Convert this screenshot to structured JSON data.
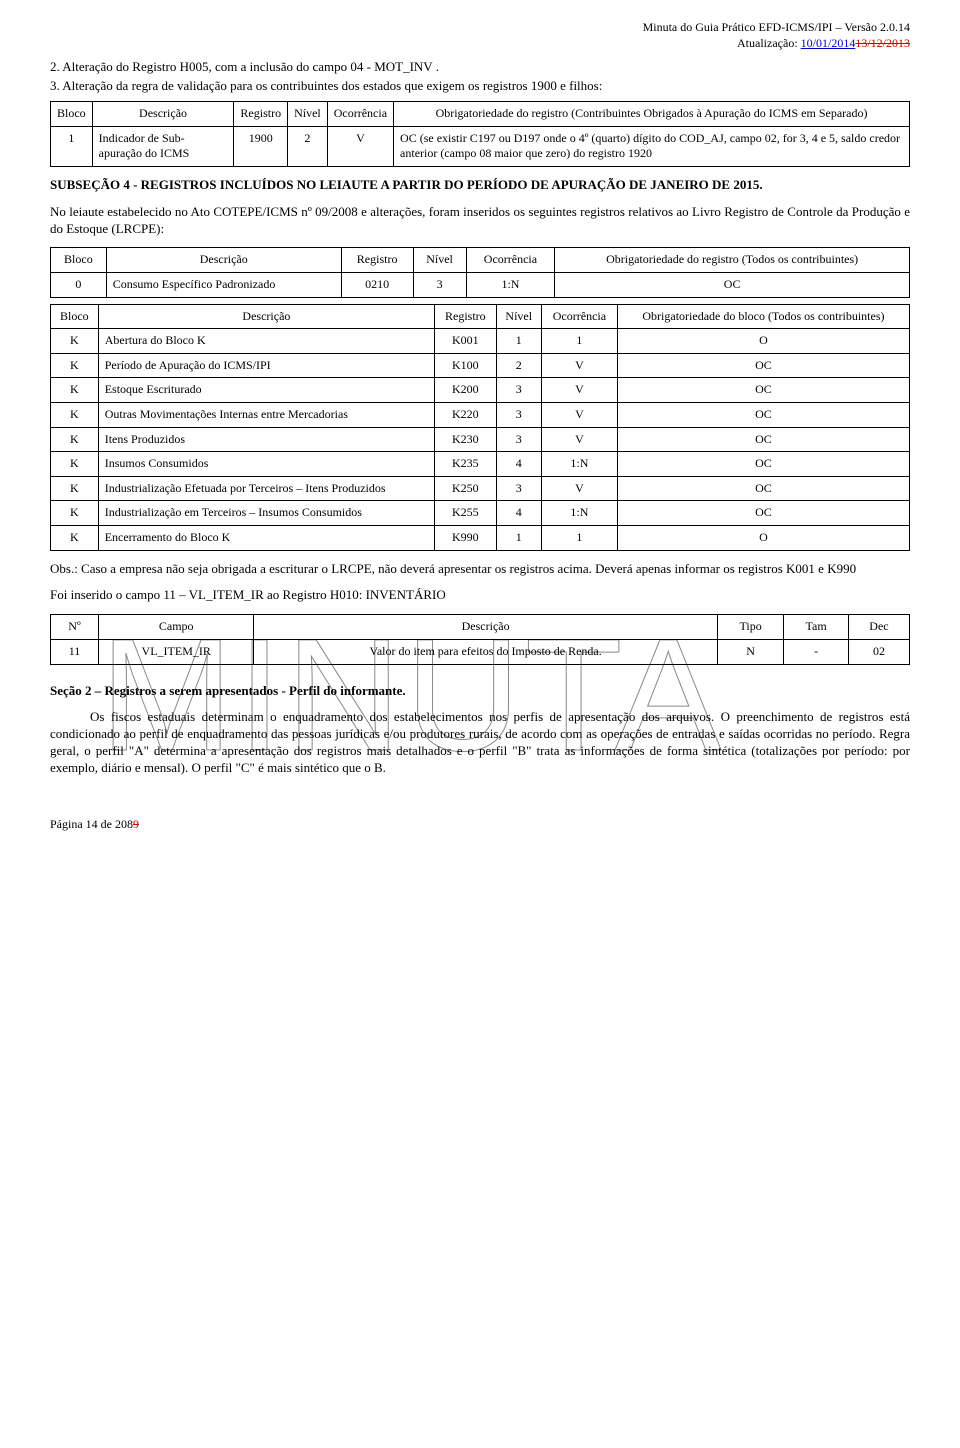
{
  "header": {
    "title": "Minuta do Guia Prático EFD-ICMS/IPI – Versão 2.0.14",
    "update_label": "Atualização:",
    "update_new": "10/01/2014",
    "update_old": "13/12/2013"
  },
  "item2": "2.    Alteração do Registro H005, com a inclusão do campo 04 - MOT_INV .",
  "item3": "3.   Alteração da regra de validação para os contribuintes dos estados que exigem os registros 1900 e filhos:",
  "table1": {
    "columns": [
      "Bloco",
      "Descrição",
      "Registro",
      "Nível",
      "Ocorrência",
      "Obrigatoriedade do registro (Contribuintes Obrigados à Apuração do ICMS em Separado)"
    ],
    "rows": [
      [
        "1",
        "Indicador de Sub-apuração do ICMS",
        "1900",
        "2",
        "V",
        "OC (se existir C197 ou D197 onde o 4º (quarto) dígito do COD_AJ, campo 02, for 3, 4 e 5, saldo credor anterior (campo 08 maior que zero) do registro 1920"
      ]
    ]
  },
  "subsection_title": "SUBSEÇÃO 4 - REGISTROS INCLUÍDOS NO LEIAUTE A PARTIR DO PERÍODO DE APURAÇÃO DE JANEIRO DE 2015.",
  "leiaute_para": "No leiaute estabelecido no Ato COTEPE/ICMS nº 09/2008 e alterações, foram inseridos os seguintes registros relativos ao Livro Registro de Controle da Produção e do Estoque (LRCPE):",
  "table2": {
    "columns": [
      "Bloco",
      "Descrição",
      "Registro",
      "Nível",
      "Ocorrência",
      "Obrigatoriedade do registro (Todos os contribuintes)"
    ],
    "rows": [
      [
        "0",
        "Consumo Específico Padronizado",
        "0210",
        "3",
        "1:N",
        "OC"
      ]
    ]
  },
  "table3": {
    "columns": [
      "Bloco",
      "Descrição",
      "Registro",
      "Nível",
      "Ocorrência",
      "Obrigatoriedade do bloco (Todos os contribuintes)"
    ],
    "rows": [
      [
        "K",
        "Abertura do Bloco K",
        "K001",
        "1",
        "1",
        "O"
      ],
      [
        "K",
        "Período de Apuração do ICMS/IPI",
        "K100",
        "2",
        "V",
        "OC"
      ],
      [
        "K",
        "Estoque Escriturado",
        "K200",
        "3",
        "V",
        "OC"
      ],
      [
        "K",
        "Outras Movimentações Internas entre Mercadorias",
        "K220",
        "3",
        "V",
        "OC"
      ],
      [
        "K",
        "Itens Produzidos",
        "K230",
        "3",
        "V",
        "OC"
      ],
      [
        "K",
        "Insumos Consumidos",
        "K235",
        "4",
        "1:N",
        "OC"
      ],
      [
        "K",
        "Industrialização Efetuada por Terceiros – Itens Produzidos",
        "K250",
        "3",
        "V",
        "OC"
      ],
      [
        "K",
        "Industrialização em Terceiros – Insumos Consumidos",
        "K255",
        "4",
        "1:N",
        "OC"
      ],
      [
        "K",
        "Encerramento do Bloco K",
        "K990",
        "1",
        "1",
        "O"
      ]
    ]
  },
  "obs_para": "Obs.: Caso a empresa não seja obrigada a escriturar o LRCPE, não deverá apresentar os registros acima. Deverá apenas informar os registros K001 e K990",
  "foi_para": "Foi inserido o campo 11 – VL_ITEM_IR ao Registro H010: INVENTÁRIO",
  "table4": {
    "columns": [
      "Nº",
      "Campo",
      "Descrição",
      "Tipo",
      "Tam",
      "Dec"
    ],
    "rows": [
      [
        "11",
        "VL_ITEM_IR",
        "Valor do item para efeitos do Imposto de Renda.",
        "N",
        "-",
        "02"
      ]
    ]
  },
  "secao2_title": "Seção 2 – Registros a serem apresentados - Perfil do informante.",
  "secao2_para": "Os fiscos estaduais determinam o enquadramento dos estabelecimentos nos perfis de apresentação dos arquivos. O preenchimento de registros está condicionado ao perfil de enquadramento das pessoas jurídicas e/ou produtores rurais, de acordo com as operações de entradas e saídas ocorridas no período. Regra geral, o perfil \"A\" determina a apresentação dos registros mais detalhados e o perfil \"B\" trata as informações de forma sintética (totalizações por período: por exemplo, diário e mensal). O perfil \"C\" é mais sintético que o B.",
  "footer": {
    "prefix": "Página 14 de 208",
    "strike": "9"
  },
  "watermark_text": "MINUTA"
}
